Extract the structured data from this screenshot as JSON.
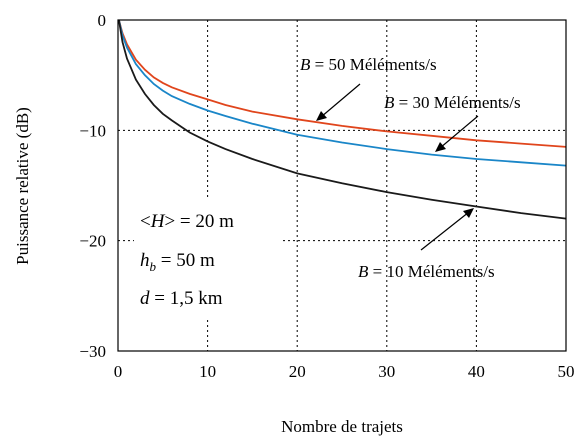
{
  "chart_data": {
    "type": "line",
    "title": "",
    "xlabel": "Nombre de trajets",
    "ylabel": "Puissance relative (dB)",
    "xlim": [
      0,
      50
    ],
    "ylim": [
      -30,
      0
    ],
    "xticks": [
      0,
      10,
      20,
      30,
      40,
      50
    ],
    "yticks": [
      0,
      -10,
      -20,
      -30
    ],
    "xtick_labels": [
      "0",
      "10",
      "20",
      "30",
      "40",
      "50"
    ],
    "ytick_labels": [
      "0",
      "−10",
      "−20",
      "−30"
    ],
    "grid": "dotted, inner ticks only",
    "series": [
      {
        "name": "B = 50 Méléments/s",
        "color": "#e0451c",
        "x": [
          0.1,
          0.5,
          1,
          2,
          3,
          4,
          5,
          6,
          8,
          10,
          12,
          15,
          20,
          25,
          30,
          35,
          40,
          45,
          50
        ],
        "y": [
          0,
          -1.2,
          -2.2,
          -3.6,
          -4.5,
          -5.2,
          -5.7,
          -6.1,
          -6.7,
          -7.2,
          -7.7,
          -8.3,
          -9.0,
          -9.6,
          -10.1,
          -10.5,
          -10.9,
          -11.2,
          -11.5
        ]
      },
      {
        "name": "B = 30 Méléments/s",
        "color": "#1a86c8",
        "x": [
          0.1,
          0.5,
          1,
          2,
          3,
          4,
          5,
          6,
          8,
          10,
          12,
          15,
          20,
          25,
          30,
          35,
          40,
          45,
          50
        ],
        "y": [
          0,
          -1.4,
          -2.5,
          -4.0,
          -5.0,
          -5.8,
          -6.4,
          -6.9,
          -7.6,
          -8.2,
          -8.7,
          -9.4,
          -10.4,
          -11.1,
          -11.7,
          -12.2,
          -12.6,
          -12.9,
          -13.2
        ]
      },
      {
        "name": "B = 10 Méléments/s",
        "color": "#1a1a1a",
        "x": [
          0.1,
          0.5,
          1,
          2,
          3,
          4,
          5,
          6,
          8,
          10,
          12,
          15,
          20,
          25,
          30,
          35,
          40,
          45,
          50
        ],
        "y": [
          0,
          -2.0,
          -3.5,
          -5.4,
          -6.7,
          -7.7,
          -8.5,
          -9.1,
          -10.2,
          -11.0,
          -11.7,
          -12.6,
          -13.9,
          -14.8,
          -15.6,
          -16.3,
          -16.9,
          -17.5,
          -18.0
        ]
      }
    ],
    "annotations": {
      "b50": {
        "var": "B",
        "rest": " = 50 Méléments/s"
      },
      "b30": {
        "var": "B",
        "rest": " = 30 Méléments/s"
      },
      "b10": {
        "var": "B",
        "rest": " = 10 Méléments/s"
      },
      "param_h": {
        "open": "<",
        "var": "H",
        "close": ">",
        "rest": " = 20 m"
      },
      "param_hb": {
        "var": "h",
        "sub": "b",
        "rest": " = 50 m"
      },
      "param_d": {
        "var": "d",
        "rest": " = 1,5 km"
      }
    }
  }
}
